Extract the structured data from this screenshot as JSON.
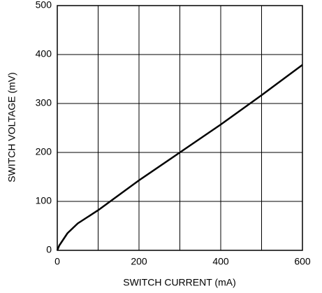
{
  "chart_data": {
    "type": "line",
    "xlabel": "SWITCH CURRENT (mA)",
    "ylabel": "SWITCH VOLTAGE (mV)",
    "x": [
      0,
      5,
      25,
      50,
      100,
      200,
      300,
      400,
      500,
      600
    ],
    "values": [
      0,
      10,
      35,
      55,
      82,
      143,
      200,
      257,
      317,
      379
    ],
    "color": "#000000",
    "xlim": [
      0,
      600
    ],
    "xticks": [
      0,
      200,
      400,
      600
    ],
    "xminor_ticks": [
      100,
      300,
      500
    ],
    "ylim": [
      0,
      500
    ],
    "yticks": [
      0,
      100,
      200,
      300,
      400,
      500
    ],
    "grid": true
  }
}
